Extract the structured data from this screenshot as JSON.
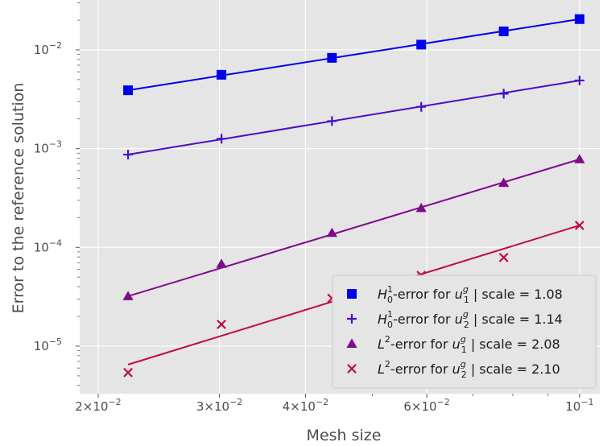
{
  "chart_data": {
    "type": "scatter",
    "xlabel": "Mesh size",
    "ylabel": "Error to the reference solution",
    "xscale": "log",
    "yscale": "log",
    "xlim": [
      0.0188,
      0.107
    ],
    "ylim": [
      3.3e-06,
      0.032
    ],
    "grid": true,
    "legend_position": "bottom-right",
    "x_ticks": [
      {
        "value": 0.02,
        "mant": "2",
        "exp": "-2"
      },
      {
        "value": 0.03,
        "mant": "3",
        "exp": "-2"
      },
      {
        "value": 0.04,
        "mant": "4",
        "exp": "-2"
      },
      {
        "value": 0.06,
        "mant": "6",
        "exp": "-2"
      },
      {
        "value": 0.1,
        "mant": "",
        "exp": "-1"
      }
    ],
    "y_ticks": [
      {
        "value": 1e-05,
        "exp": "-5"
      },
      {
        "value": 0.0001,
        "exp": "-4"
      },
      {
        "value": 0.001,
        "exp": "-3"
      },
      {
        "value": 0.01,
        "exp": "-2"
      }
    ],
    "x": [
      0.0221,
      0.0302,
      0.0437,
      0.0589,
      0.0776,
      0.1
    ],
    "series": [
      {
        "name": "H_0^1-error for u_1^g | scale = 1.08",
        "legend": {
          "pre": "",
          "main": "H",
          "sup": "1",
          "sub": "0",
          "mid": "-error for ",
          "var": "u",
          "vsup": "g",
          "vsub": "1",
          "post": " | scale = 1.08"
        },
        "marker": "square",
        "color": "#0000ee",
        "y": [
          0.0039,
          0.0056,
          0.0083,
          0.0113,
          0.0154,
          0.0205
        ],
        "fit": [
          [
            0.0221,
            0.0039
          ],
          [
            0.1,
            0.0205
          ]
        ]
      },
      {
        "name": "H_0^1-error for u_2^g | scale = 1.14",
        "legend": {
          "pre": "",
          "main": "H",
          "sup": "1",
          "sub": "0",
          "mid": "-error for ",
          "var": "u",
          "vsup": "g",
          "vsub": "2",
          "post": " | scale = 1.14"
        },
        "marker": "plus",
        "color": "#4b0ec8",
        "y": [
          0.00087,
          0.00126,
          0.0019,
          0.00265,
          0.0036,
          0.0049
        ],
        "fit": [
          [
            0.0221,
            0.00087
          ],
          [
            0.1,
            0.0049
          ]
        ]
      },
      {
        "name": "L^2-error for u_1^g | scale = 2.08",
        "legend": {
          "pre": "",
          "main": "L",
          "sup": "2",
          "sub": "",
          "mid": "-error for ",
          "var": "u",
          "vsup": "g",
          "vsub": "1",
          "post": " | scale = 2.08"
        },
        "marker": "triangle",
        "color": "#7f0a8c",
        "y": [
          3.2e-05,
          6.8e-05,
          0.00014,
          0.00025,
          0.00045,
          0.00078
        ],
        "fit": [
          [
            0.0221,
            3.2e-05
          ],
          [
            0.1,
            0.00078
          ]
        ]
      },
      {
        "name": "L^2-error for u_2^g | scale = 2.10",
        "legend": {
          "pre": "",
          "main": "L",
          "sup": "2",
          "sub": "",
          "mid": "-error for ",
          "var": "u",
          "vsup": "g",
          "vsub": "2",
          "post": " | scale = 2.10"
        },
        "marker": "x",
        "color": "#c2074f",
        "y": [
          5.4e-06,
          1.66e-05,
          3.05e-05,
          5.2e-05,
          7.9e-05,
          0.000167
        ],
        "fit": [
          [
            0.0221,
            6.5e-06
          ],
          [
            0.1,
            0.000167
          ]
        ]
      }
    ]
  },
  "colors": {
    "plot_background": "#e5e5e5",
    "grid": "#ffffff",
    "tick_text": "#4d4d4d",
    "legend_background": "#e5e5e5",
    "legend_border": "#cccccc"
  }
}
